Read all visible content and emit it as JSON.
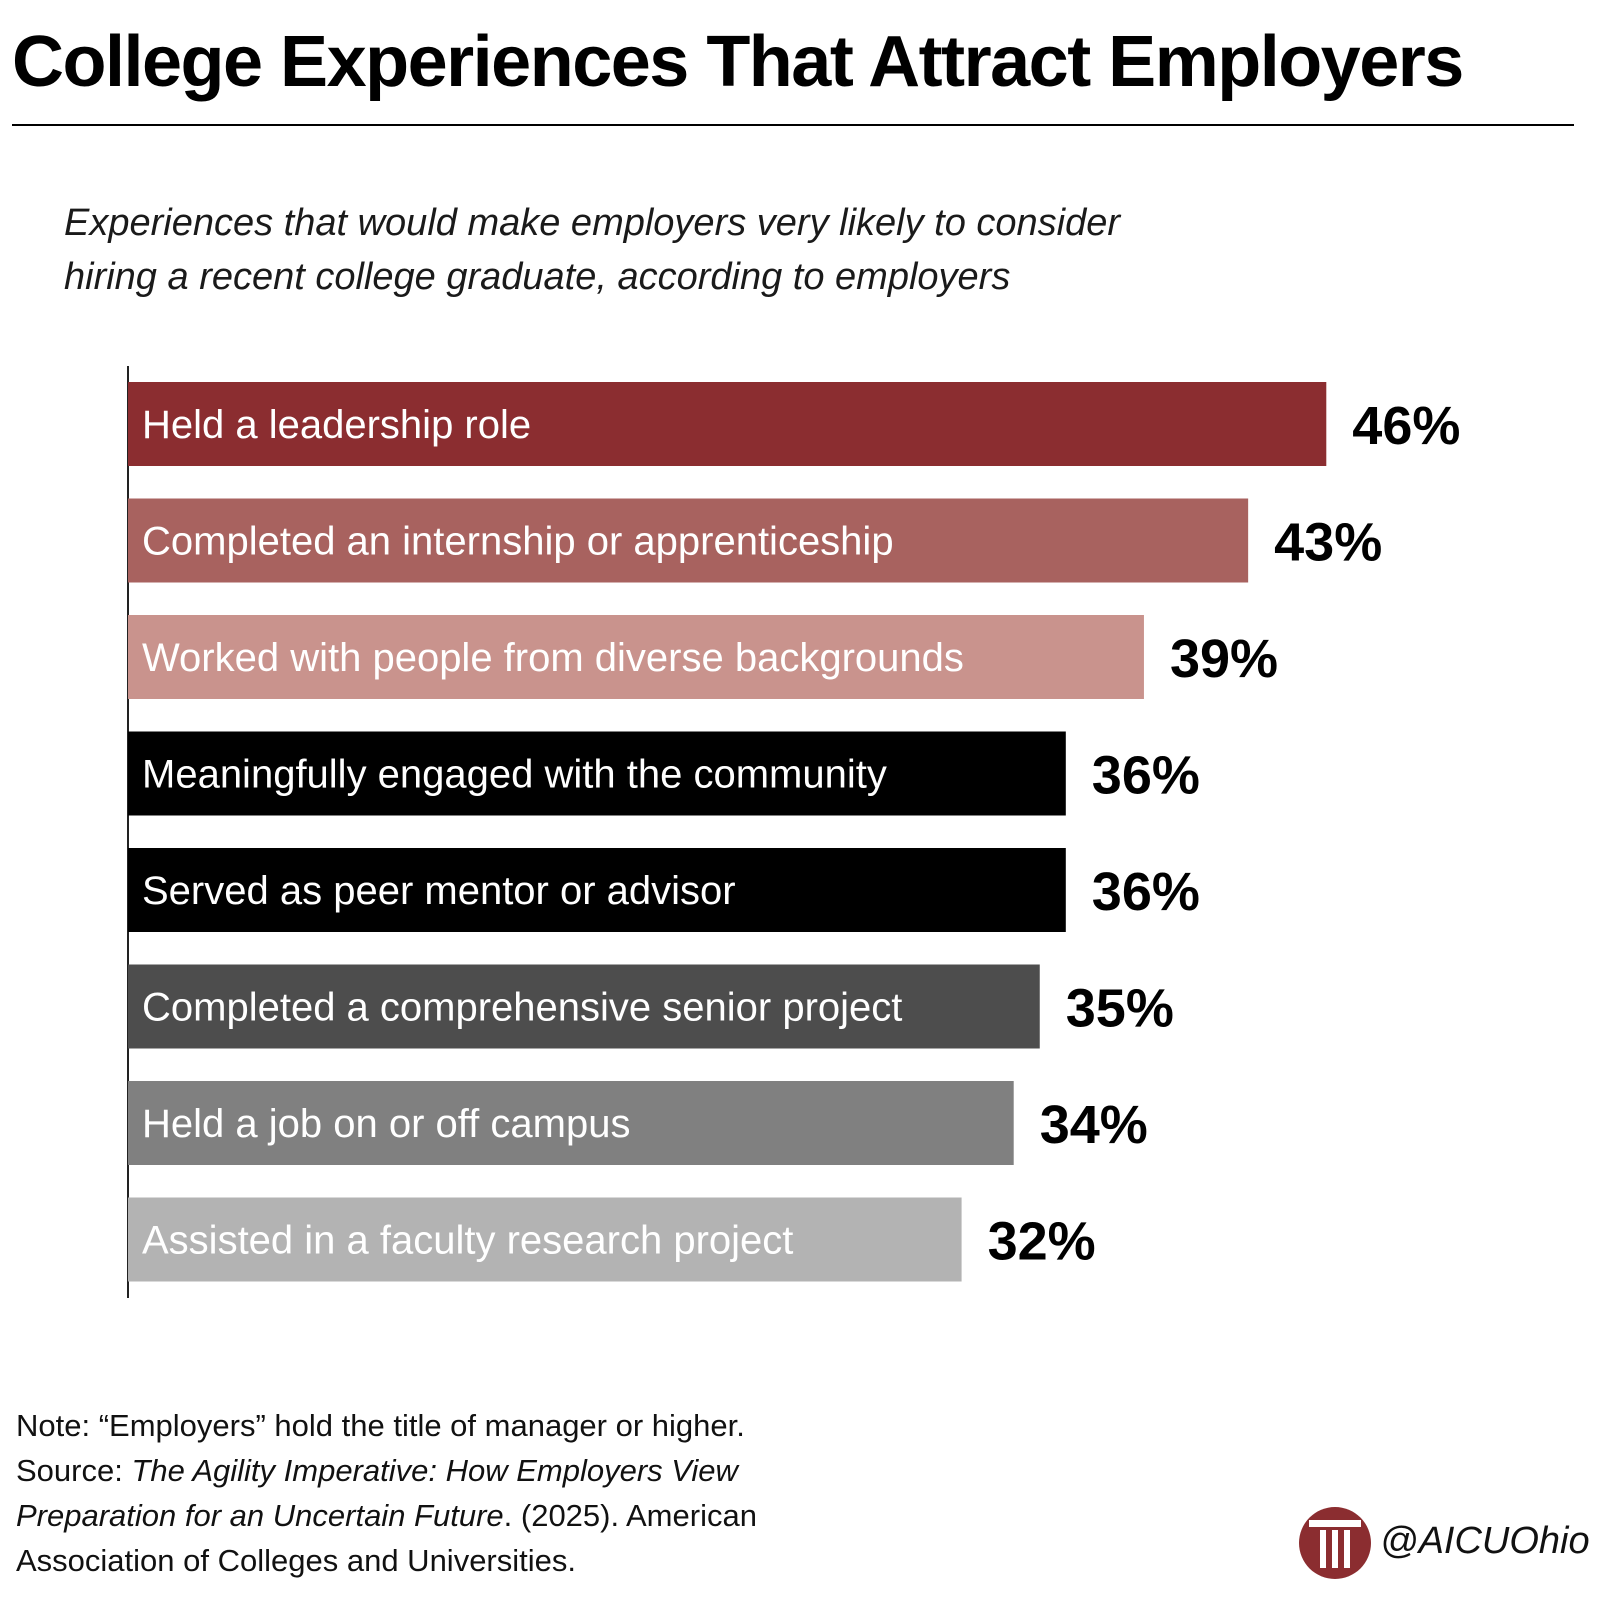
{
  "header": {
    "title": "College Experiences That Attract Employers"
  },
  "chart_data": {
    "type": "bar",
    "orientation": "horizontal",
    "subtitle_lines": [
      "Experiences that would make employers very likely to consider",
      "hiring a recent college graduate, according to employers"
    ],
    "categories": [
      "Held a leadership role",
      "Completed an internship or apprenticeship",
      "Worked with people from diverse backgrounds",
      "Meaningfully engaged with the community",
      "Served as peer mentor or advisor",
      "Completed a comprehensive senior project",
      "Held a job on or off campus",
      "Assisted in a faculty research project"
    ],
    "values": [
      46,
      43,
      39,
      36,
      36,
      35,
      34,
      32
    ],
    "value_labels": [
      "46%",
      "43%",
      "39%",
      "36%",
      "36%",
      "35%",
      "34%",
      "32%"
    ],
    "unit": "%",
    "bar_colors": [
      "#8b2d30",
      "#a8625f",
      "#c9938d",
      "#000000",
      "#000000",
      "#4d4d4d",
      "#808080",
      "#b3b3b3"
    ],
    "grid": false,
    "legend": "none"
  },
  "footer": {
    "note": "Note: “Employers” hold the title of manager or higher.",
    "source_prefix": "Source: ",
    "source_title_1": "The Agility Imperative: How Employers View",
    "source_title_2": "Preparation for an Uncertain Future",
    "source_rest": ". (2025). American",
    "source_line_4": "Association of Colleges and Universities."
  },
  "brand": {
    "handle": "@AICUOhio",
    "logo_icon": "aicu-column-logo-icon",
    "logo_color": "#8b2d30"
  }
}
